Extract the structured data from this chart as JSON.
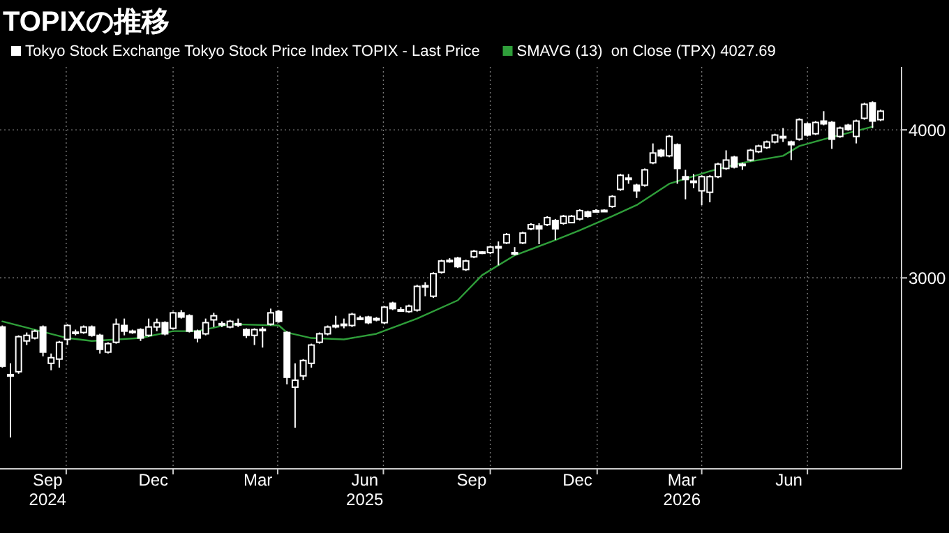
{
  "chart_data": {
    "type": "candlestick",
    "title": "TOPIXの推移",
    "log": true,
    "grid": true,
    "legend": "top left",
    "xlim": [
      "2024-08-05",
      "2026-09-20"
    ],
    "ylim": [
      2070,
      4520
    ],
    "yticks": [
      3000,
      4000
    ],
    "xticks": [
      {
        "value": "2024-09-15",
        "label": "Sep\n2024"
      },
      {
        "value": "2024-12-15",
        "label": "Dec"
      },
      {
        "value": "2025-03-15",
        "label": "Mar"
      },
      {
        "value": "2025-06-15",
        "label": "Jun\n2025"
      },
      {
        "value": "2025-09-15",
        "label": "Sep"
      },
      {
        "value": "2025-12-15",
        "label": "Dec"
      },
      {
        "value": "2026-03-15",
        "label": "Mar\n2026"
      },
      {
        "value": "2026-06-15",
        "label": "Jun"
      },
      {
        "value": "2024-10-01",
        "label": null
      },
      {
        "value": "2025-01-01",
        "label": null
      },
      {
        "value": "2025-04-01",
        "label": null
      },
      {
        "value": "2025-07-01",
        "label": null
      },
      {
        "value": "2025-10-01",
        "label": null
      },
      {
        "value": "2026-01-01",
        "label": null
      },
      {
        "value": "2026-04-01",
        "label": null
      },
      {
        "value": "2026-07-01",
        "label": null
      }
    ],
    "series": [
      {
        "name": "Tokyo Stock Exchange Tokyo Stock Price Index TOPIX - Last Price",
        "color": "#ffffff",
        "x": [
          "2024-08-07",
          "2024-08-14",
          "2024-08-21",
          "2024-08-28",
          "2024-09-04",
          "2024-09-11",
          "2024-09-18",
          "2024-09-25",
          "2024-10-02",
          "2024-10-09",
          "2024-10-16",
          "2024-10-23",
          "2024-10-30",
          "2024-11-06",
          "2024-11-13",
          "2024-11-20",
          "2024-11-27",
          "2024-12-04",
          "2024-12-11",
          "2024-12-18",
          "2024-12-25",
          "2025-01-01",
          "2025-01-08",
          "2025-01-15",
          "2025-01-22",
          "2025-01-29",
          "2025-02-05",
          "2025-02-12",
          "2025-02-19",
          "2025-02-26",
          "2025-03-05",
          "2025-03-12",
          "2025-03-19",
          "2025-03-26",
          "2025-04-02",
          "2025-04-09",
          "2025-04-16",
          "2025-04-23",
          "2025-04-30",
          "2025-05-07",
          "2025-05-14",
          "2025-05-21",
          "2025-05-28",
          "2025-06-04",
          "2025-06-11",
          "2025-06-18",
          "2025-06-25",
          "2025-07-02",
          "2025-07-09",
          "2025-07-16",
          "2025-07-23",
          "2025-07-30",
          "2025-08-06",
          "2025-08-13",
          "2025-08-20",
          "2025-08-27",
          "2025-09-03",
          "2025-09-10",
          "2025-09-17",
          "2025-09-24",
          "2025-10-01",
          "2025-10-08",
          "2025-10-15",
          "2025-10-22",
          "2025-10-29",
          "2025-11-05",
          "2025-11-12",
          "2025-11-19",
          "2025-11-26",
          "2025-12-03",
          "2025-12-10",
          "2025-12-17",
          "2025-12-24",
          "2025-12-31",
          "2026-01-07",
          "2026-01-14",
          "2026-01-21",
          "2026-01-28",
          "2026-02-04",
          "2026-02-11",
          "2026-02-18",
          "2026-02-25",
          "2026-03-04",
          "2026-03-11",
          "2026-03-18",
          "2026-03-25",
          "2026-04-01",
          "2026-04-08",
          "2026-04-15",
          "2026-04-22",
          "2026-04-29",
          "2026-05-06",
          "2026-05-13",
          "2026-05-20",
          "2026-05-27",
          "2026-06-03",
          "2026-06-10",
          "2026-06-17",
          "2026-06-24",
          "2026-07-01",
          "2026-07-08",
          "2026-07-15",
          "2026-07-22",
          "2026-07-29",
          "2026-08-05",
          "2026-08-12",
          "2026-08-19",
          "2026-08-26",
          "2026-09-02"
        ],
        "ohlc": [
          [
            2727,
            2735,
            2520,
            2527
          ],
          [
            2486,
            2541,
            2200,
            2480
          ],
          [
            2500,
            2683,
            2490,
            2676
          ],
          [
            2654,
            2698,
            2633,
            2683
          ],
          [
            2669,
            2713,
            2662,
            2705
          ],
          [
            2727,
            2735,
            2576,
            2597
          ],
          [
            2541,
            2590,
            2507,
            2569
          ],
          [
            2562,
            2654,
            2520,
            2647
          ],
          [
            2662,
            2742,
            2633,
            2735
          ],
          [
            2698,
            2713,
            2683,
            2700
          ],
          [
            2698,
            2735,
            2691,
            2727
          ],
          [
            2727,
            2735,
            2676,
            2683
          ],
          [
            2683,
            2691,
            2590,
            2611
          ],
          [
            2597,
            2647,
            2590,
            2640
          ],
          [
            2647,
            2772,
            2640,
            2742
          ],
          [
            2735,
            2772,
            2683,
            2705
          ],
          [
            2698,
            2713,
            2691,
            2705
          ],
          [
            2713,
            2720,
            2654,
            2669
          ],
          [
            2683,
            2772,
            2676,
            2727
          ],
          [
            2727,
            2772,
            2705,
            2750
          ],
          [
            2750,
            2757,
            2683,
            2691
          ],
          [
            2720,
            2810,
            2713,
            2803
          ],
          [
            2803,
            2818,
            2772,
            2780
          ],
          [
            2787,
            2795,
            2698,
            2705
          ],
          [
            2705,
            2713,
            2647,
            2669
          ],
          [
            2691,
            2772,
            2683,
            2750
          ],
          [
            2765,
            2803,
            2727,
            2787
          ],
          [
            2742,
            2757,
            2727,
            2745
          ],
          [
            2727,
            2765,
            2720,
            2757
          ],
          [
            2745,
            2772,
            2727,
            2742
          ],
          [
            2713,
            2720,
            2669,
            2683
          ],
          [
            2683,
            2720,
            2633,
            2713
          ],
          [
            2713,
            2727,
            2620,
            2715
          ],
          [
            2742,
            2826,
            2735,
            2803
          ],
          [
            2810,
            2818,
            2750,
            2757
          ],
          [
            2698,
            2705,
            2439,
            2473
          ],
          [
            2426,
            2541,
            2242,
            2459
          ],
          [
            2480,
            2562,
            2459,
            2555
          ],
          [
            2541,
            2640,
            2520,
            2633
          ],
          [
            2647,
            2698,
            2640,
            2691
          ],
          [
            2691,
            2735,
            2683,
            2727
          ],
          [
            2730,
            2787,
            2720,
            2735
          ],
          [
            2740,
            2772,
            2720,
            2742
          ],
          [
            2735,
            2803,
            2727,
            2795
          ],
          [
            2772,
            2787,
            2765,
            2775
          ],
          [
            2780,
            2787,
            2742,
            2750
          ],
          [
            2770,
            2780,
            2757,
            2772
          ],
          [
            2750,
            2840,
            2742,
            2834
          ],
          [
            2856,
            2864,
            2818,
            2826
          ],
          [
            2818,
            2834,
            2810,
            2820
          ],
          [
            2810,
            2848,
            2803,
            2840
          ],
          [
            2818,
            2960,
            2810,
            2951
          ],
          [
            2951,
            2975,
            2895,
            2955
          ],
          [
            2895,
            3033,
            2885,
            3025
          ],
          [
            3033,
            3108,
            3025,
            3100
          ],
          [
            3100,
            3117,
            3090,
            3104
          ],
          [
            3117,
            3125,
            3058,
            3066
          ],
          [
            3049,
            3108,
            3041,
            3100
          ],
          [
            3125,
            3168,
            3117,
            3159
          ],
          [
            3151,
            3159,
            3142,
            3155
          ],
          [
            3151,
            3194,
            3142,
            3185
          ],
          [
            3185,
            3220,
            3074,
            3188
          ],
          [
            3211,
            3273,
            3203,
            3264
          ],
          [
            3150,
            3185,
            3134,
            3151
          ],
          [
            3211,
            3282,
            3203,
            3273
          ],
          [
            3300,
            3336,
            3291,
            3327
          ],
          [
            3318,
            3336,
            3203,
            3300
          ],
          [
            3327,
            3382,
            3318,
            3373
          ],
          [
            3354,
            3364,
            3229,
            3300
          ],
          [
            3336,
            3391,
            3327,
            3382
          ],
          [
            3340,
            3391,
            3336,
            3382
          ],
          [
            3364,
            3428,
            3354,
            3419
          ],
          [
            3410,
            3419,
            3373,
            3382
          ],
          [
            3417,
            3428,
            3410,
            3419
          ],
          [
            3419,
            3428,
            3410,
            3421
          ],
          [
            3447,
            3523,
            3438,
            3514
          ],
          [
            3563,
            3672,
            3553,
            3662
          ],
          [
            3640,
            3671,
            3602,
            3642
          ],
          [
            3592,
            3602,
            3504,
            3553
          ],
          [
            3592,
            3711,
            3582,
            3701
          ],
          [
            3752,
            3896,
            3742,
            3824
          ],
          [
            3844,
            3855,
            3793,
            3803
          ],
          [
            3803,
            3960,
            3793,
            3949
          ],
          [
            3886,
            3896,
            3602,
            3711
          ],
          [
            3652,
            3701,
            3495,
            3632
          ],
          [
            3620,
            3671,
            3572,
            3621
          ],
          [
            3553,
            3662,
            3456,
            3652
          ],
          [
            3543,
            3662,
            3475,
            3652
          ],
          [
            3652,
            3752,
            3642,
            3742
          ],
          [
            3711,
            3844,
            3701,
            3772
          ],
          [
            3793,
            3803,
            3711,
            3721
          ],
          [
            3740,
            3752,
            3701,
            3742
          ],
          [
            3772,
            3855,
            3762,
            3844
          ],
          [
            3834,
            3886,
            3824,
            3876
          ],
          [
            3865,
            3917,
            3855,
            3907
          ],
          [
            3907,
            3970,
            3896,
            3960
          ],
          [
            3947,
            4014,
            3907,
            3949
          ],
          [
            3907,
            3917,
            3772,
            3886
          ],
          [
            3928,
            4091,
            3917,
            4080
          ],
          [
            4047,
            4058,
            3949,
            3960
          ],
          [
            3970,
            4069,
            3960,
            4058
          ],
          [
            4069,
            4148,
            4036,
            4047
          ],
          [
            4058,
            4069,
            3855,
            3928
          ],
          [
            3949,
            4025,
            3939,
            4014
          ],
          [
            4036,
            4047,
            3993,
            4003
          ],
          [
            3949,
            4080,
            3896,
            4069
          ],
          [
            4091,
            4216,
            4080,
            4204
          ],
          [
            4216,
            4228,
            4014,
            4069
          ],
          [
            4080,
            4160,
            4069,
            4148
          ]
        ]
      },
      {
        "type": "line",
        "name": "SMAVG (13)  on Close (TPX) 4027.69",
        "color": "#2f9e3a",
        "x": [
          "2024-08-07",
          "2024-10-02",
          "2024-10-23",
          "2024-12-04",
          "2025-01-01",
          "2025-01-22",
          "2025-02-19",
          "2025-04-02",
          "2025-04-09",
          "2025-04-30",
          "2025-05-28",
          "2025-06-25",
          "2025-07-30",
          "2025-09-03",
          "2025-09-24",
          "2025-10-22",
          "2025-11-26",
          "2025-12-17",
          "2026-01-14",
          "2026-02-04",
          "2026-03-04",
          "2026-04-08",
          "2026-05-06",
          "2026-06-10",
          "2026-06-24",
          "2026-07-15",
          "2026-08-26"
        ],
        "values": [
          2757,
          2669,
          2654,
          2669,
          2705,
          2705,
          2742,
          2735,
          2698,
          2669,
          2662,
          2691,
          2772,
          2872,
          3016,
          3134,
          3229,
          3291,
          3382,
          3456,
          3602,
          3691,
          3752,
          3803,
          3876,
          3928,
          4025
        ]
      }
    ]
  }
}
